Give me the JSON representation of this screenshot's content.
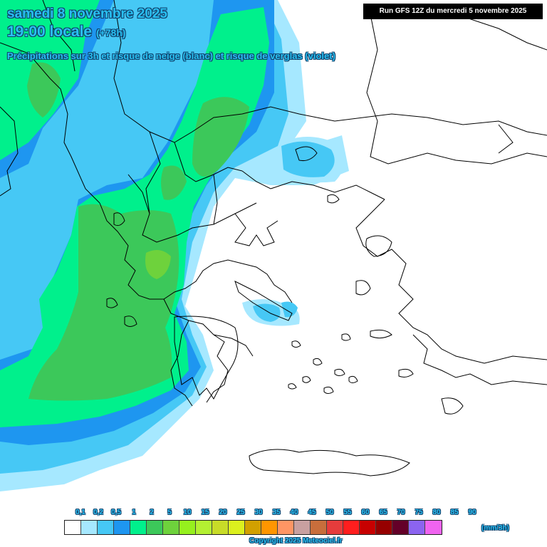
{
  "header": {
    "line1": "samedi 8 novembre 2025",
    "line2_time": "19:00 locale",
    "line2_offset": "(+78h)",
    "line3": "Précipitations sur 3h et risque de neige (blanc) et risque de verglas (violet)"
  },
  "run_info": "Run GFS 12Z du mercredi 5 novembre 2025",
  "legend": {
    "ticks": [
      "0,1",
      "0,2",
      "0,5",
      "1",
      "2",
      "5",
      "10",
      "15",
      "20",
      "25",
      "30",
      "35",
      "40",
      "45",
      "50",
      "55",
      "60",
      "65",
      "70",
      "75",
      "80",
      "85",
      "90"
    ],
    "colors": [
      "#ffffff",
      "#a6e8ff",
      "#46c8f5",
      "#1e96f0",
      "#00f08c",
      "#3cc85a",
      "#6ed23c",
      "#96f01e",
      "#b4f032",
      "#c8dc28",
      "#dcf01e",
      "#d2a000",
      "#ff9600",
      "#ff9664",
      "#c8a0a0",
      "#c86e3c",
      "#e63c3c",
      "#ff1e1e",
      "#c80000",
      "#960000",
      "#640028",
      "#8c64f0",
      "#f064f0"
    ],
    "unit": "(mm/3h)"
  },
  "copyright": "Copyright 2025 Meteociel.fr",
  "precip_colors": {
    "light_cyan": "#a6e8ff",
    "sky_blue": "#46c8f5",
    "blue": "#1e96f0",
    "green_teal": "#00f08c",
    "green": "#3cc85a",
    "yellow_green": "#6ed23c"
  },
  "map_region": "Greece and southern Balkans"
}
